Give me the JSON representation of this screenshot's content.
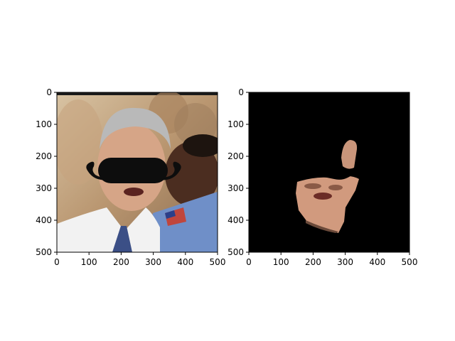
{
  "chart_data": [
    {
      "type": "image",
      "title": "",
      "xlabel": "",
      "ylabel": "",
      "xlim": [
        0,
        500
      ],
      "ylim": [
        500,
        0
      ],
      "xticks": [
        0,
        100,
        200,
        300,
        400,
        500
      ],
      "yticks": [
        0,
        100,
        200,
        300,
        400,
        500
      ],
      "grid": false,
      "image_content": "portrait photo of a man in white shirt and blue tie with a black cartoon mustache overlay; second person in blue jersey at right",
      "colors": {
        "background": "#c9ab86",
        "shirt": "#f2f2f2",
        "jersey": "#6f8fc8",
        "mustache": "#0d0d0d",
        "skin": "#d6a587",
        "hair": "#b9b9b9"
      }
    },
    {
      "type": "image",
      "title": "",
      "xlabel": "",
      "ylabel": "",
      "xlim": [
        0,
        500
      ],
      "ylim": [
        500,
        0
      ],
      "xticks": [
        0,
        100,
        200,
        300,
        400,
        500
      ],
      "yticks": [
        0,
        100,
        200,
        300,
        400,
        500
      ],
      "grid": false,
      "image_content": "masked segmentation of the face region on a black background",
      "colors": {
        "background": "#000000",
        "skin": "#d19a7e",
        "mask_shadow": "#6b4a3a"
      }
    }
  ]
}
